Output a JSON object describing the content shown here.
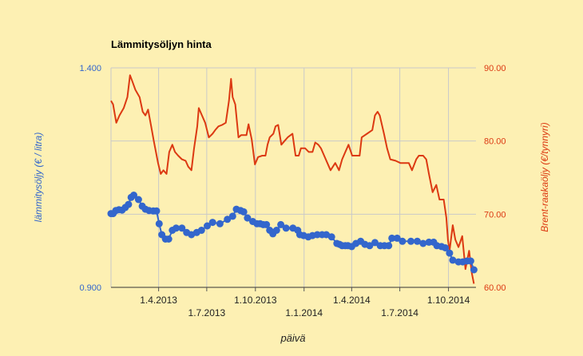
{
  "chart_data": {
    "type": "line",
    "title": "Lämmitysöljyn hinta",
    "xlabel": "päivä",
    "ylabel_left": "lämmitysöljy (€ / litra)",
    "ylabel_right": "Brent-raakaöljy (€/tynnyri)",
    "x_tick_labels": [
      "1.4.2013",
      "1.7.2013",
      "1.10.2013",
      "1.1.2014",
      "1.4.2014",
      "1.7.2014",
      "1.10.2014"
    ],
    "x_tick_dates": [
      "2013-04-01",
      "2013-07-01",
      "2013-10-01",
      "2014-01-01",
      "2014-04-01",
      "2014-07-01",
      "2014-10-01"
    ],
    "xlim": [
      "2013-01-01",
      "2014-11-22"
    ],
    "ylim_left": [
      0.9,
      1.4
    ],
    "ylim_right": [
      60,
      90
    ],
    "y_left_tick_labels": [
      "1.400",
      "0.900"
    ],
    "y_right_tick_labels": [
      "90.00",
      "80.00",
      "70.00",
      "60.00"
    ],
    "grid": true,
    "colors": {
      "heating_oil": "#3366cc",
      "brent": "#dc3912",
      "left_axis": "#3366cc",
      "right_axis": "#dc3912",
      "background": "#fdf0b3"
    },
    "series": [
      {
        "axis": "left",
        "style": "line-markers",
        "points": [
          [
            "2013-01-01",
            1.068
          ],
          [
            "2013-01-05",
            1.068
          ],
          [
            "2013-01-10",
            1.075
          ],
          [
            "2013-01-16",
            1.077
          ],
          [
            "2013-01-22",
            1.076
          ],
          [
            "2013-01-28",
            1.082
          ],
          [
            "2013-02-03",
            1.089
          ],
          [
            "2013-02-08",
            1.105
          ],
          [
            "2013-02-13",
            1.11
          ],
          [
            "2013-02-22",
            1.1
          ],
          [
            "2013-03-01",
            1.085
          ],
          [
            "2013-03-07",
            1.078
          ],
          [
            "2013-03-14",
            1.075
          ],
          [
            "2013-03-22",
            1.074
          ],
          [
            "2013-03-28",
            1.074
          ],
          [
            "2013-04-02",
            1.045
          ],
          [
            "2013-04-07",
            1.02
          ],
          [
            "2013-04-14",
            1.01
          ],
          [
            "2013-04-20",
            1.01
          ],
          [
            "2013-04-27",
            1.03
          ],
          [
            "2013-05-04",
            1.035
          ],
          [
            "2013-05-15",
            1.035
          ],
          [
            "2013-05-24",
            1.025
          ],
          [
            "2013-06-02",
            1.02
          ],
          [
            "2013-06-12",
            1.025
          ],
          [
            "2013-06-21",
            1.03
          ],
          [
            "2013-07-02",
            1.04
          ],
          [
            "2013-07-12",
            1.048
          ],
          [
            "2013-07-26",
            1.045
          ],
          [
            "2013-08-09",
            1.055
          ],
          [
            "2013-08-19",
            1.062
          ],
          [
            "2013-08-26",
            1.078
          ],
          [
            "2013-09-03",
            1.075
          ],
          [
            "2013-09-09",
            1.072
          ],
          [
            "2013-09-16",
            1.058
          ],
          [
            "2013-09-26",
            1.05
          ],
          [
            "2013-10-04",
            1.045
          ],
          [
            "2013-10-10",
            1.045
          ],
          [
            "2013-10-16",
            1.043
          ],
          [
            "2013-10-22",
            1.043
          ],
          [
            "2013-10-28",
            1.03
          ],
          [
            "2013-11-03",
            1.022
          ],
          [
            "2013-11-10",
            1.03
          ],
          [
            "2013-11-18",
            1.043
          ],
          [
            "2013-11-28",
            1.035
          ],
          [
            "2013-12-11",
            1.035
          ],
          [
            "2013-12-20",
            1.03
          ],
          [
            "2013-12-24",
            1.02
          ],
          [
            "2013-12-31",
            1.018
          ],
          [
            "2014-01-09",
            1.015
          ],
          [
            "2014-01-17",
            1.018
          ],
          [
            "2014-01-26",
            1.02
          ],
          [
            "2014-02-04",
            1.02
          ],
          [
            "2014-02-12",
            1.02
          ],
          [
            "2014-02-22",
            1.015
          ],
          [
            "2014-03-04",
            1.0
          ],
          [
            "2014-03-09",
            0.998
          ],
          [
            "2014-03-14",
            0.995
          ],
          [
            "2014-03-20",
            0.995
          ],
          [
            "2014-03-25",
            0.995
          ],
          [
            "2014-04-01",
            0.993
          ],
          [
            "2014-04-09",
            1.0
          ],
          [
            "2014-04-18",
            1.005
          ],
          [
            "2014-04-26",
            0.998
          ],
          [
            "2014-05-05",
            0.995
          ],
          [
            "2014-05-15",
            1.002
          ],
          [
            "2014-05-25",
            0.995
          ],
          [
            "2014-06-02",
            0.995
          ],
          [
            "2014-06-10",
            0.995
          ],
          [
            "2014-06-16",
            1.012
          ],
          [
            "2014-06-26",
            1.012
          ],
          [
            "2014-07-06",
            1.005
          ],
          [
            "2014-07-22",
            1.005
          ],
          [
            "2014-08-03",
            1.005
          ],
          [
            "2014-08-14",
            1.0
          ],
          [
            "2014-08-25",
            1.003
          ],
          [
            "2014-09-03",
            1.003
          ],
          [
            "2014-09-09",
            0.995
          ],
          [
            "2014-09-18",
            0.993
          ],
          [
            "2014-09-25",
            0.99
          ],
          [
            "2014-10-03",
            0.978
          ],
          [
            "2014-10-09",
            0.962
          ],
          [
            "2014-10-20",
            0.958
          ],
          [
            "2014-10-28",
            0.958
          ],
          [
            "2014-11-05",
            0.96
          ],
          [
            "2014-11-12",
            0.96
          ],
          [
            "2014-11-18",
            0.94
          ]
        ]
      },
      {
        "axis": "right",
        "style": "line",
        "points": [
          [
            "2013-01-01",
            85.5
          ],
          [
            "2013-01-05",
            85.0
          ],
          [
            "2013-01-11",
            82.5
          ],
          [
            "2013-01-17",
            83.5
          ],
          [
            "2013-01-25",
            84.5
          ],
          [
            "2013-02-01",
            86.0
          ],
          [
            "2013-02-06",
            89.0
          ],
          [
            "2013-02-11",
            88.0
          ],
          [
            "2013-02-16",
            87.0
          ],
          [
            "2013-02-24",
            86.0
          ],
          [
            "2013-03-02",
            84.0
          ],
          [
            "2013-03-07",
            83.5
          ],
          [
            "2013-03-12",
            84.3
          ],
          [
            "2013-03-18",
            82.0
          ],
          [
            "2013-03-23",
            80.0
          ],
          [
            "2013-03-31",
            77.0
          ],
          [
            "2013-04-05",
            75.5
          ],
          [
            "2013-04-10",
            76.0
          ],
          [
            "2013-04-16",
            75.5
          ],
          [
            "2013-04-21",
            78.5
          ],
          [
            "2013-04-27",
            79.5
          ],
          [
            "2013-05-02",
            78.5
          ],
          [
            "2013-05-08",
            78.0
          ],
          [
            "2013-05-15",
            77.5
          ],
          [
            "2013-05-22",
            77.3
          ],
          [
            "2013-05-27",
            76.5
          ],
          [
            "2013-06-02",
            76.0
          ],
          [
            "2013-06-07",
            79.0
          ],
          [
            "2013-06-13",
            82.0
          ],
          [
            "2013-06-16",
            84.5
          ],
          [
            "2013-06-22",
            83.5
          ],
          [
            "2013-06-28",
            82.5
          ],
          [
            "2013-07-05",
            80.5
          ],
          [
            "2013-07-12",
            81.0
          ],
          [
            "2013-07-17",
            81.5
          ],
          [
            "2013-07-23",
            82.0
          ],
          [
            "2013-07-30",
            82.2
          ],
          [
            "2013-08-06",
            82.5
          ],
          [
            "2013-08-12",
            85.5
          ],
          [
            "2013-08-16",
            88.5
          ],
          [
            "2013-08-19",
            86.0
          ],
          [
            "2013-08-24",
            85.0
          ],
          [
            "2013-08-30",
            80.5
          ],
          [
            "2013-09-04",
            80.8
          ],
          [
            "2013-09-14",
            80.8
          ],
          [
            "2013-09-18",
            82.3
          ],
          [
            "2013-09-24",
            80.2
          ],
          [
            "2013-09-30",
            76.8
          ],
          [
            "2013-10-06",
            77.8
          ],
          [
            "2013-10-14",
            78.0
          ],
          [
            "2013-10-20",
            78.0
          ],
          [
            "2013-10-24",
            79.5
          ],
          [
            "2013-10-28",
            80.5
          ],
          [
            "2013-11-04",
            81.0
          ],
          [
            "2013-11-08",
            82.0
          ],
          [
            "2013-11-13",
            82.2
          ],
          [
            "2013-11-19",
            79.5
          ],
          [
            "2013-11-25",
            80.0
          ],
          [
            "2013-12-01",
            80.5
          ],
          [
            "2013-12-10",
            81.0
          ],
          [
            "2013-12-16",
            78.0
          ],
          [
            "2013-12-22",
            78.0
          ],
          [
            "2013-12-26",
            79.0
          ],
          [
            "2014-01-03",
            79.0
          ],
          [
            "2014-01-10",
            78.5
          ],
          [
            "2014-01-17",
            78.5
          ],
          [
            "2014-01-22",
            79.8
          ],
          [
            "2014-01-28",
            79.5
          ],
          [
            "2014-02-02",
            79.0
          ],
          [
            "2014-02-08",
            78.0
          ],
          [
            "2014-02-14",
            77.0
          ],
          [
            "2014-02-20",
            76.0
          ],
          [
            "2014-03-01",
            77.0
          ],
          [
            "2014-03-08",
            76.0
          ],
          [
            "2014-03-14",
            77.5
          ],
          [
            "2014-03-20",
            78.5
          ],
          [
            "2014-03-26",
            79.5
          ],
          [
            "2014-04-02",
            78.0
          ],
          [
            "2014-04-07",
            78.0
          ],
          [
            "2014-04-16",
            78.0
          ],
          [
            "2014-04-20",
            80.5
          ],
          [
            "2014-04-30",
            81.0
          ],
          [
            "2014-05-10",
            81.5
          ],
          [
            "2014-05-15",
            83.5
          ],
          [
            "2014-05-20",
            84.0
          ],
          [
            "2014-05-24",
            83.5
          ],
          [
            "2014-06-01",
            81.0
          ],
          [
            "2014-06-07",
            79.0
          ],
          [
            "2014-06-13",
            77.5
          ],
          [
            "2014-06-23",
            77.3
          ],
          [
            "2014-07-02",
            77.0
          ],
          [
            "2014-07-10",
            77.0
          ],
          [
            "2014-07-18",
            77.0
          ],
          [
            "2014-07-24",
            76.0
          ],
          [
            "2014-08-01",
            77.5
          ],
          [
            "2014-08-06",
            78.0
          ],
          [
            "2014-08-14",
            78.0
          ],
          [
            "2014-08-20",
            77.5
          ],
          [
            "2014-08-25",
            75.5
          ],
          [
            "2014-09-01",
            73.0
          ],
          [
            "2014-09-08",
            74.0
          ],
          [
            "2014-09-14",
            72.0
          ],
          [
            "2014-09-22",
            72.0
          ],
          [
            "2014-09-27",
            69.5
          ],
          [
            "2014-09-30",
            66.5
          ],
          [
            "2014-10-03",
            65.0
          ],
          [
            "2014-10-09",
            68.5
          ],
          [
            "2014-10-14",
            66.5
          ],
          [
            "2014-10-20",
            65.5
          ],
          [
            "2014-10-27",
            67.0
          ],
          [
            "2014-11-02",
            62.5
          ],
          [
            "2014-11-09",
            65.0
          ],
          [
            "2014-11-14",
            62.0
          ],
          [
            "2014-11-18",
            60.5
          ]
        ]
      }
    ]
  }
}
